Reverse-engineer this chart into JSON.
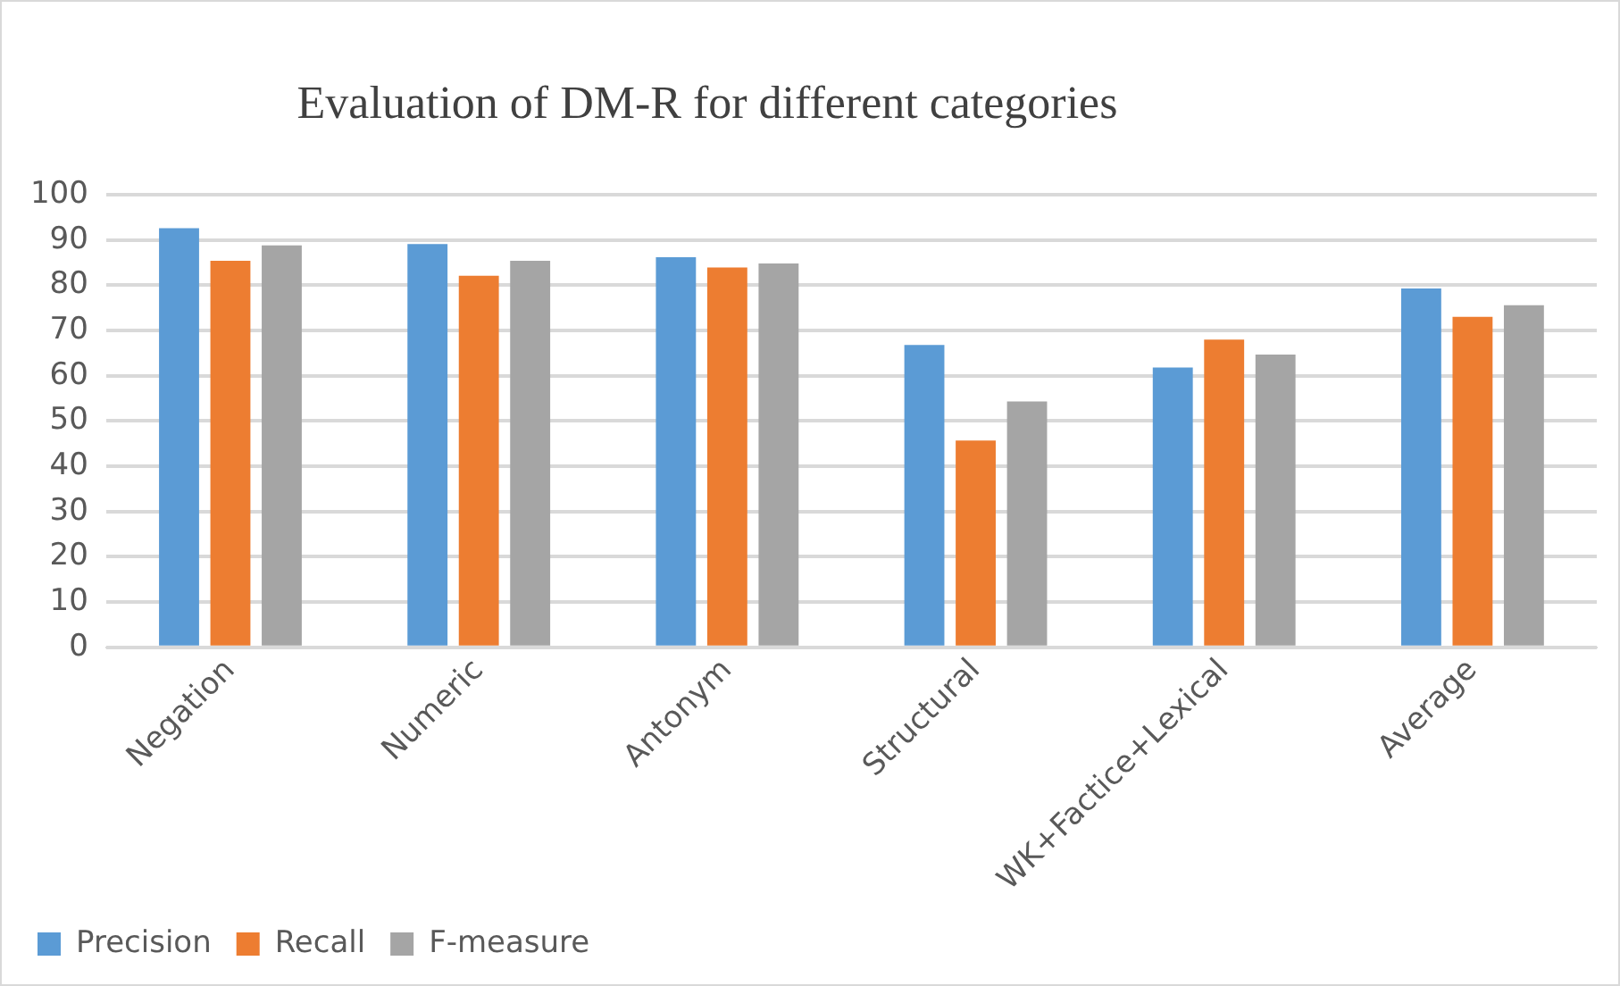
{
  "chart_data": {
    "type": "bar",
    "title": "Evaluation of DM-R for different categories",
    "categories": [
      "Negation",
      "Numeric",
      "Antonym",
      "Structural",
      "WK+Factice+Lexical",
      "Average"
    ],
    "series": [
      {
        "name": "Precision",
        "color": "#5b9bd5",
        "values": [
          92.6,
          89.1,
          86.2,
          66.8,
          61.8,
          79.3
        ]
      },
      {
        "name": "Recall",
        "color": "#ed7d31",
        "values": [
          85.4,
          82.1,
          83.9,
          45.7,
          68.0,
          73.0
        ]
      },
      {
        "name": "F-measure",
        "color": "#a5a5a5",
        "values": [
          88.8,
          85.4,
          84.8,
          54.3,
          64.7,
          75.6
        ]
      }
    ],
    "ylim": [
      0,
      100
    ],
    "yticks": [
      0,
      10,
      20,
      30,
      40,
      50,
      60,
      70,
      80,
      90,
      100
    ],
    "grid": "y",
    "legend": "bottom"
  }
}
